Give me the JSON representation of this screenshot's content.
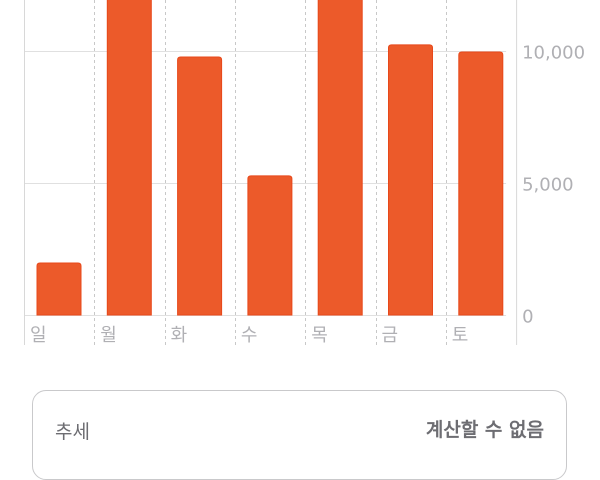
{
  "chart_data": {
    "type": "bar",
    "categories": [
      "일",
      "월",
      "화",
      "수",
      "목",
      "금",
      "토"
    ],
    "values": [
      1970,
      12500,
      9770,
      5270,
      12500,
      10230,
      9960
    ],
    "y_ticks": [
      0,
      5000,
      10000
    ],
    "y_tick_labels": [
      "0",
      "5,000",
      "10,000"
    ],
    "ylim": [
      0,
      11930
    ],
    "grid": true,
    "bar_color": "#ec5a2a"
  },
  "trend": {
    "label": "추세",
    "value": "계산할 수 없음"
  }
}
